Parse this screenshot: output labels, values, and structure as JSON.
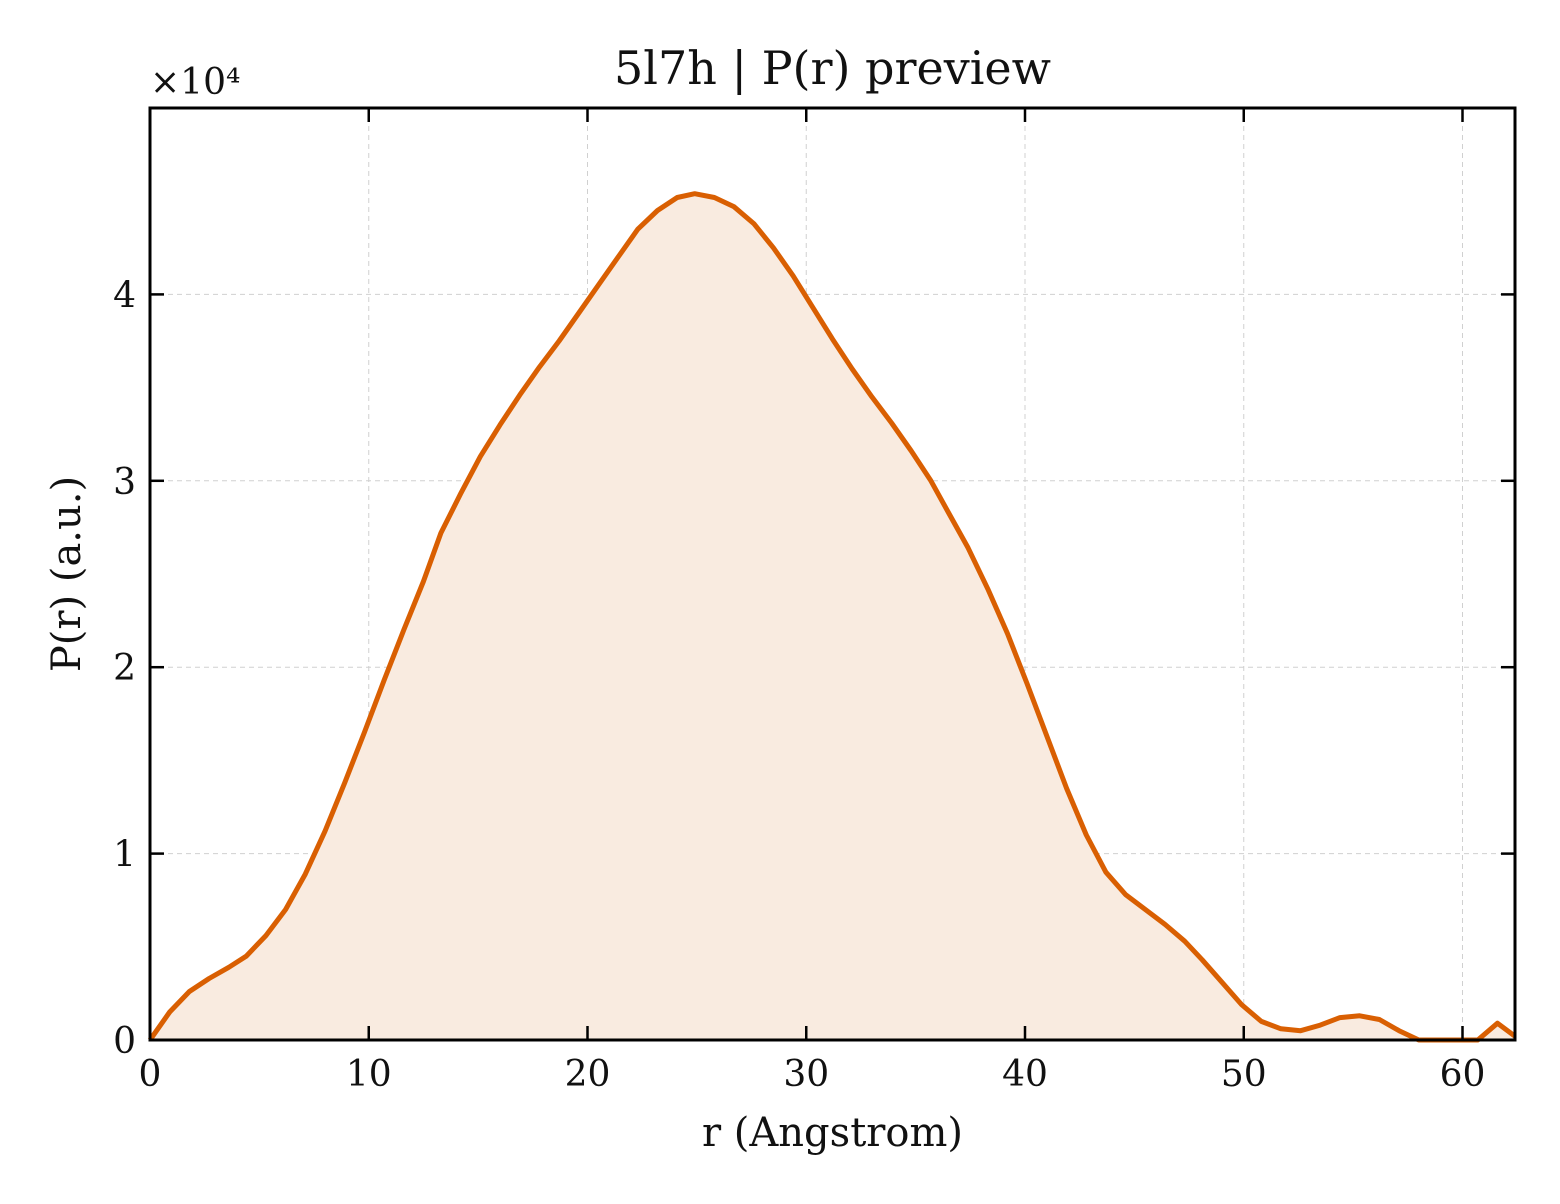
{
  "chart_data": {
    "type": "area",
    "title": "5l7h | P(r) preview",
    "xlabel": "r (Angstrom)",
    "ylabel": "P(r) (a.u.)",
    "y_offset_label": "×10⁴",
    "xlim": [
      0,
      62.4
    ],
    "ylim": [
      0,
      5.0
    ],
    "y_scale_factor": 10000,
    "grid": true,
    "x_ticks": [
      0,
      10,
      20,
      30,
      40,
      50,
      60
    ],
    "y_ticks": [
      0,
      1,
      2,
      3,
      4
    ],
    "x_tick_labels": [
      "0",
      "10",
      "20",
      "30",
      "40",
      "50",
      "60"
    ],
    "y_tick_labels": [
      "0",
      "1",
      "2",
      "3",
      "4"
    ],
    "colors": {
      "line": "#d95f02",
      "fill": "#f9ebe0",
      "grid": "#d0d0d0",
      "axes": "#000000"
    },
    "series": [
      {
        "x": [
          0,
          0.9,
          1.8,
          2.7,
          3.6,
          4.4,
          5.3,
          6.2,
          7.1,
          8.0,
          8.9,
          9.8,
          10.7,
          11.6,
          12.5,
          13.3,
          14.2,
          15.1,
          16.0,
          16.9,
          17.8,
          18.7,
          19.6,
          20.5,
          21.4,
          22.3,
          23.2,
          24.1,
          24.9,
          25.8,
          26.7,
          27.6,
          28.5,
          29.4,
          30.3,
          31.2,
          32.1,
          33.0,
          33.9,
          34.8,
          35.7,
          36.5,
          37.4,
          38.3,
          39.2,
          40.1,
          41.0,
          41.9,
          42.8,
          43.7,
          44.6,
          45.5,
          46.4,
          47.3,
          48.1,
          49.0,
          49.9,
          50.8,
          51.7,
          52.6,
          53.5,
          54.4,
          55.3,
          56.2,
          57.1,
          58.0,
          58.9,
          59.8,
          60.7,
          61.6,
          62.4
        ],
        "values": [
          0.0,
          0.15,
          0.26,
          0.33,
          0.39,
          0.45,
          0.56,
          0.7,
          0.89,
          1.12,
          1.38,
          1.65,
          1.93,
          2.2,
          2.46,
          2.72,
          2.93,
          3.13,
          3.3,
          3.46,
          3.61,
          3.75,
          3.9,
          4.05,
          4.2,
          4.35,
          4.45,
          4.52,
          4.54,
          4.52,
          4.47,
          4.38,
          4.25,
          4.1,
          3.93,
          3.76,
          3.6,
          3.45,
          3.31,
          3.16,
          3.0,
          2.83,
          2.64,
          2.42,
          2.18,
          1.91,
          1.63,
          1.35,
          1.1,
          0.9,
          0.78,
          0.7,
          0.62,
          0.53,
          0.43,
          0.31,
          0.19,
          0.1,
          0.06,
          0.05,
          0.08,
          0.12,
          0.13,
          0.11,
          0.05,
          0.0,
          0.0,
          0.0,
          0.0,
          0.09,
          0.02
        ]
      }
    ]
  }
}
